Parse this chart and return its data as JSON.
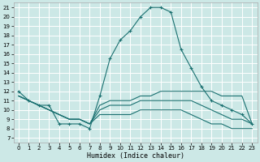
{
  "xlabel": "Humidex (Indice chaleur)",
  "xlim": [
    -0.5,
    23.5
  ],
  "ylim": [
    6.5,
    21.5
  ],
  "xticks": [
    0,
    1,
    2,
    3,
    4,
    5,
    6,
    7,
    8,
    9,
    10,
    11,
    12,
    13,
    14,
    15,
    16,
    17,
    18,
    19,
    20,
    21,
    22,
    23
  ],
  "yticks": [
    7,
    8,
    9,
    10,
    11,
    12,
    13,
    14,
    15,
    16,
    17,
    18,
    19,
    20,
    21
  ],
  "background_color": "#cce8e6",
  "grid_color": "#ffffff",
  "line_color": "#1a7070",
  "lines": [
    {
      "x": [
        0,
        1,
        2,
        3,
        4,
        5,
        6,
        7,
        8,
        9,
        10,
        11,
        12,
        13,
        14,
        15,
        16,
        17,
        18,
        19,
        20,
        21,
        22,
        23
      ],
      "y": [
        12,
        11,
        10.5,
        10.5,
        8.5,
        8.5,
        8.5,
        8.0,
        11.5,
        15.5,
        17.5,
        18.5,
        20.0,
        21.0,
        21.0,
        20.5,
        16.5,
        14.5,
        12.5,
        11.0,
        10.5,
        10.0,
        9.5,
        8.5
      ],
      "marker": "+"
    },
    {
      "x": [
        0,
        1,
        2,
        3,
        4,
        5,
        6,
        7,
        8,
        9,
        10,
        11,
        12,
        13,
        14,
        15,
        16,
        17,
        18,
        19,
        20,
        21,
        22,
        23
      ],
      "y": [
        11.5,
        11.0,
        10.5,
        10.0,
        9.5,
        9.0,
        9.0,
        8.5,
        10.5,
        11.0,
        11.0,
        11.0,
        11.5,
        11.5,
        12.0,
        12.0,
        12.0,
        12.0,
        12.0,
        12.0,
        11.5,
        11.5,
        11.5,
        8.5
      ],
      "marker": null
    },
    {
      "x": [
        0,
        1,
        2,
        3,
        4,
        5,
        6,
        7,
        8,
        9,
        10,
        11,
        12,
        13,
        14,
        15,
        16,
        17,
        18,
        19,
        20,
        21,
        22,
        23
      ],
      "y": [
        11.5,
        11.0,
        10.5,
        10.0,
        9.5,
        9.0,
        9.0,
        8.5,
        10.0,
        10.5,
        10.5,
        10.5,
        11.0,
        11.0,
        11.0,
        11.0,
        11.0,
        11.0,
        10.5,
        10.0,
        9.5,
        9.0,
        9.0,
        8.5
      ],
      "marker": null
    },
    {
      "x": [
        0,
        1,
        2,
        3,
        4,
        5,
        6,
        7,
        8,
        9,
        10,
        11,
        12,
        13,
        14,
        15,
        16,
        17,
        18,
        19,
        20,
        21,
        22,
        23
      ],
      "y": [
        11.5,
        11.0,
        10.5,
        10.0,
        9.5,
        9.0,
        9.0,
        8.5,
        9.5,
        9.5,
        9.5,
        9.5,
        10.0,
        10.0,
        10.0,
        10.0,
        10.0,
        9.5,
        9.0,
        8.5,
        8.5,
        8.0,
        8.0,
        8.0
      ],
      "marker": null
    }
  ]
}
